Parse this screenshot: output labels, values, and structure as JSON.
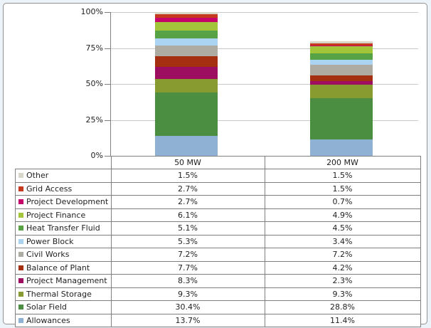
{
  "chart_data": {
    "type": "bar",
    "subtype": "100%-stacked-column-with-data-table",
    "title": "",
    "categories": [
      "50 MW",
      "200 MW"
    ],
    "ylim": [
      0,
      100
    ],
    "grid": true,
    "legend_position": "data-table-left-column",
    "y_ticks": [
      {
        "label": "100%",
        "value": 100
      },
      {
        "label": "75%",
        "value": 75
      },
      {
        "label": "50%",
        "value": 50
      },
      {
        "label": "25%",
        "value": 25
      },
      {
        "label": "0%",
        "value": 0
      }
    ],
    "series": [
      {
        "name": "Other",
        "color": "#d8d5c9",
        "values": [
          1.5,
          1.5
        ],
        "display": [
          "1.5%",
          "1.5%"
        ]
      },
      {
        "name": "Grid Access",
        "color": "#c5391e",
        "values": [
          2.7,
          1.5
        ],
        "display": [
          "2.7%",
          "1.5%"
        ]
      },
      {
        "name": "Project Development",
        "color": "#c7046a",
        "values": [
          2.7,
          0.7
        ],
        "display": [
          "2.7%",
          "0.7%"
        ]
      },
      {
        "name": "Project Finance",
        "color": "#a3c53a",
        "values": [
          6.1,
          4.9
        ],
        "display": [
          "6.1%",
          "4.9%"
        ]
      },
      {
        "name": "Heat Transfer Fluid",
        "color": "#56a245",
        "values": [
          5.1,
          4.5
        ],
        "display": [
          "5.1%",
          "4.5%"
        ]
      },
      {
        "name": "Power Block",
        "color": "#abd3f2",
        "values": [
          5.3,
          3.4
        ],
        "display": [
          "5.3%",
          "3.4%"
        ]
      },
      {
        "name": "Civil Works",
        "color": "#aeaba2",
        "values": [
          7.2,
          7.2
        ],
        "display": [
          "7.2%",
          "7.2%"
        ]
      },
      {
        "name": "Balance of Plant",
        "color": "#a52f11",
        "values": [
          7.7,
          4.2
        ],
        "display": [
          "7.7%",
          "4.2%"
        ]
      },
      {
        "name": "Project Management",
        "color": "#9d0e60",
        "values": [
          8.3,
          2.3
        ],
        "display": [
          "8.3%",
          "2.3%"
        ]
      },
      {
        "name": "Thermal Storage",
        "color": "#879b31",
        "values": [
          9.3,
          9.3
        ],
        "display": [
          "9.3%",
          "9.3%"
        ]
      },
      {
        "name": "Solar Field",
        "color": "#4b8e41",
        "values": [
          30.4,
          28.8
        ],
        "display": [
          "30.4%",
          "28.8%"
        ]
      },
      {
        "name": "Allowances",
        "color": "#8fb1d3",
        "values": [
          13.7,
          11.4
        ],
        "display": [
          "13.7%",
          "11.4%"
        ]
      }
    ],
    "stack_order": "last-series-at-bottom",
    "colors": {
      "gridline": "#c8c8c8",
      "axis": "#7f7f7f",
      "table_border": "#7f7f7f",
      "outer_background": "#ecf4fa",
      "plot_background": "#ffffff",
      "text": "#1f1f1f"
    }
  }
}
